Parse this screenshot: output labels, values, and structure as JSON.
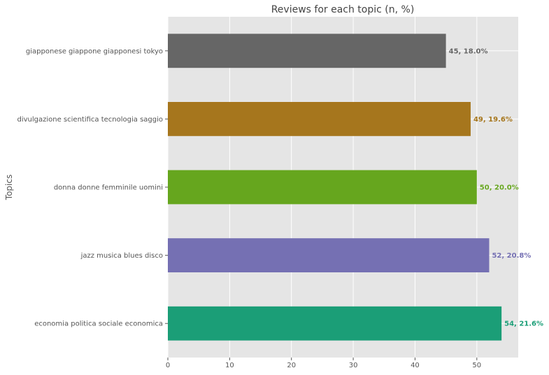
{
  "chart_data": {
    "type": "bar",
    "orientation": "horizontal",
    "title": "Reviews for each topic (n, %)",
    "xlabel": "",
    "ylabel": "Topics",
    "xlim": [
      0,
      56.7
    ],
    "xticks": [
      0,
      10,
      20,
      30,
      40,
      50
    ],
    "grid": true,
    "legend": "none",
    "categories": [
      "economia politica sociale economica",
      "jazz musica blues disco",
      "donna donne femminile uomini",
      "divulgazione scientifica tecnologia saggio",
      "giapponese giappone giapponesi tokyo"
    ],
    "values": [
      54,
      52,
      50,
      49,
      45
    ],
    "labels": [
      "54, 21.6%",
      "52, 20.8%",
      "50, 20.0%",
      "49, 19.6%",
      "45, 18.0%"
    ],
    "colors": [
      "#1b9e77",
      "#7570b3",
      "#66a61e",
      "#a6761d",
      "#666666"
    ]
  }
}
